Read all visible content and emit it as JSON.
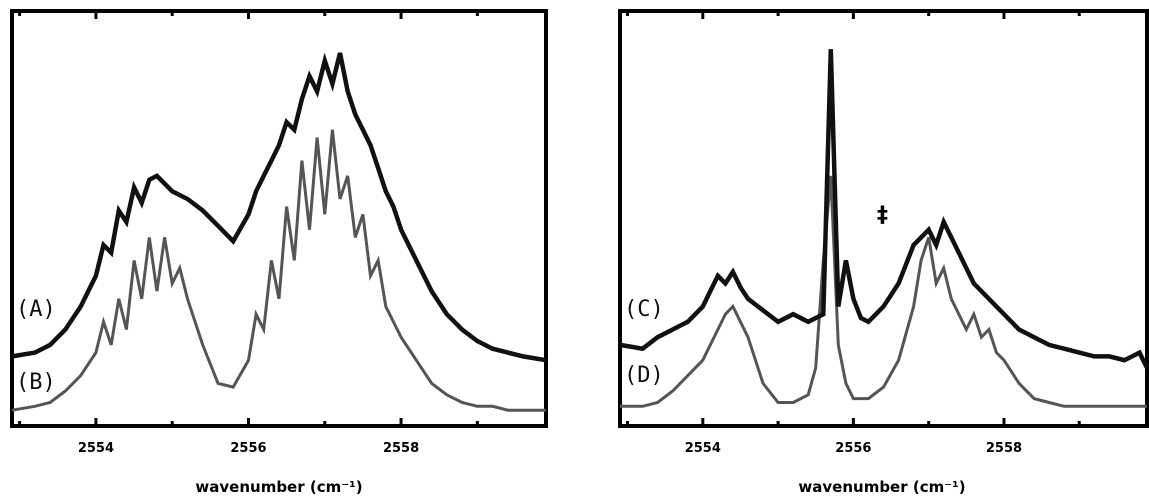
{
  "chart_data": [
    {
      "type": "line",
      "panel": "left",
      "xlim": [
        4.5,
        39.5
      ],
      "ylim": [
        0,
        100
      ],
      "xticks": [
        10,
        20,
        30
      ],
      "xtick_labels": [
        "2554",
        "2556",
        "2558"
      ],
      "xlabel": "wavenumber (cm⁻¹)",
      "grid": false,
      "annotations": [],
      "series": [
        {
          "name": "(A)",
          "color": "#111111",
          "stroke_width": 4.5,
          "x": [
            4.5,
            6,
            7,
            8,
            9,
            10,
            10.5,
            11,
            11.5,
            12,
            12.5,
            13,
            13.5,
            14,
            14.5,
            15,
            16,
            17,
            18,
            19,
            20,
            20.5,
            21,
            21.5,
            22,
            22.5,
            23,
            23.5,
            24,
            24.5,
            25,
            25.5,
            26,
            26.5,
            27,
            27.5,
            28,
            28.5,
            29,
            29.5,
            30,
            31,
            32,
            33,
            34,
            35,
            36,
            37,
            38,
            39.5
          ],
          "y": [
            15,
            16,
            18,
            22,
            28,
            36,
            44,
            42,
            53,
            50,
            59,
            55,
            61,
            62,
            60,
            58,
            56,
            53,
            49,
            45,
            52,
            58,
            62,
            66,
            70,
            76,
            74,
            82,
            88,
            84,
            92,
            86,
            94,
            84,
            78,
            74,
            70,
            64,
            58,
            54,
            48,
            40,
            32,
            26,
            22,
            19,
            17,
            16,
            15,
            14
          ]
        },
        {
          "name": "(B)",
          "color": "#555555",
          "stroke_width": 3,
          "x": [
            4.5,
            6,
            7,
            8,
            9,
            10,
            10.5,
            11,
            11.5,
            12,
            12.5,
            13,
            13.5,
            14,
            14.5,
            15,
            15.5,
            16,
            17,
            18,
            19,
            20,
            20.5,
            21,
            21.5,
            22,
            22.5,
            23,
            23.5,
            24,
            24.5,
            25,
            25.5,
            26,
            26.5,
            27,
            27.5,
            28,
            28.5,
            29,
            30,
            31,
            32,
            33,
            34,
            35,
            36,
            37,
            38,
            39.5
          ],
          "y": [
            1,
            2,
            3,
            6,
            10,
            16,
            24,
            18,
            30,
            22,
            40,
            30,
            46,
            32,
            46,
            34,
            38,
            30,
            18,
            8,
            7,
            14,
            26,
            22,
            40,
            30,
            54,
            40,
            66,
            48,
            72,
            52,
            74,
            56,
            62,
            46,
            52,
            36,
            40,
            28,
            20,
            14,
            8,
            5,
            3,
            2,
            2,
            1,
            1,
            1
          ]
        }
      ],
      "series_labels": [
        "(A)",
        "(B)"
      ]
    },
    {
      "type": "line",
      "panel": "right",
      "xlim": [
        4.5,
        39.5
      ],
      "ylim": [
        0,
        100
      ],
      "xticks": [
        10,
        20,
        30
      ],
      "xtick_labels": [
        "2554",
        "2556",
        "2558"
      ],
      "xlabel": "wavenumber (cm⁻¹)",
      "grid": false,
      "annotations": [
        "‡"
      ],
      "series": [
        {
          "name": "(C)",
          "color": "#111111",
          "stroke_width": 4.5,
          "x": [
            4.5,
            6,
            7,
            8,
            9,
            10,
            10.5,
            11,
            11.5,
            12,
            12.5,
            13,
            14,
            15,
            16,
            17,
            18,
            18.5,
            19,
            19.5,
            20,
            20.5,
            21,
            22,
            23,
            24,
            24.5,
            25,
            25.5,
            26,
            26.5,
            27,
            27.5,
            28,
            29,
            30,
            31,
            32,
            33,
            34,
            35,
            36,
            37,
            38,
            39,
            39.5
          ],
          "y": [
            18,
            17,
            20,
            22,
            24,
            28,
            32,
            36,
            34,
            37,
            33,
            30,
            27,
            24,
            26,
            24,
            26,
            95,
            28,
            40,
            30,
            25,
            24,
            28,
            34,
            44,
            46,
            48,
            44,
            50,
            46,
            42,
            38,
            34,
            30,
            26,
            22,
            20,
            18,
            17,
            16,
            15,
            15,
            14,
            16,
            12
          ]
        },
        {
          "name": "(D)",
          "color": "#555555",
          "stroke_width": 3,
          "x": [
            4.5,
            6,
            7,
            8,
            9,
            10,
            10.5,
            11,
            11.5,
            12,
            13,
            14,
            15,
            16,
            17,
            17.5,
            18,
            18.5,
            19,
            19.5,
            20,
            21,
            22,
            23,
            24,
            24.5,
            25,
            25.5,
            26,
            26.5,
            27,
            27.5,
            28,
            28.5,
            29,
            29.5,
            30,
            31,
            32,
            33,
            34,
            35,
            36,
            37,
            38,
            39.5
          ],
          "y": [
            2,
            2,
            3,
            6,
            10,
            14,
            18,
            22,
            26,
            28,
            20,
            8,
            3,
            3,
            5,
            12,
            40,
            62,
            18,
            8,
            4,
            4,
            7,
            14,
            28,
            40,
            46,
            34,
            38,
            30,
            26,
            22,
            26,
            20,
            22,
            16,
            14,
            8,
            4,
            3,
            2,
            2,
            2,
            2,
            2,
            2
          ]
        }
      ],
      "series_labels": [
        "(C)",
        "(D)"
      ]
    }
  ]
}
